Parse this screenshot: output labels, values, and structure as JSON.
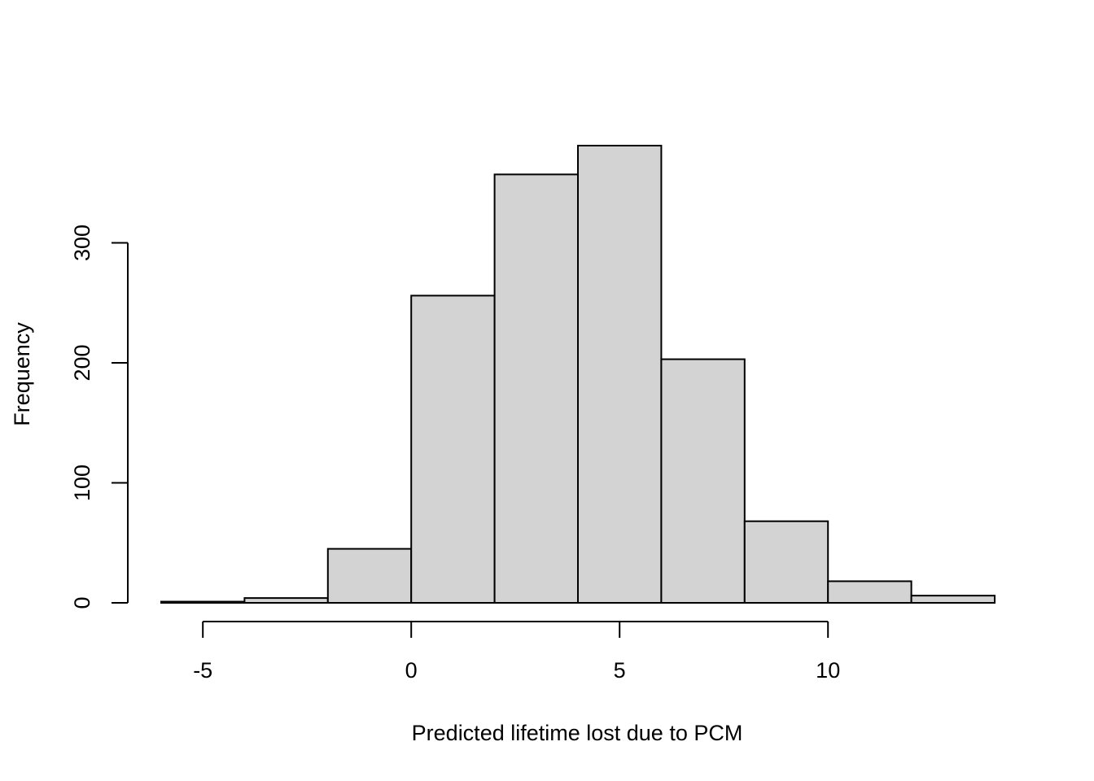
{
  "chart_data": {
    "type": "bar",
    "subtype": "histogram",
    "title": "",
    "xlabel": "Predicted lifetime lost due to PCM",
    "ylabel": "Frequency",
    "bins": [
      {
        "start": -6,
        "end": -4,
        "count": 1
      },
      {
        "start": -4,
        "end": -2,
        "count": 4
      },
      {
        "start": -2,
        "end": 0,
        "count": 45
      },
      {
        "start": 0,
        "end": 2,
        "count": 256
      },
      {
        "start": 2,
        "end": 4,
        "count": 357
      },
      {
        "start": 4,
        "end": 6,
        "count": 381
      },
      {
        "start": 6,
        "end": 8,
        "count": 203
      },
      {
        "start": 8,
        "end": 10,
        "count": 68
      },
      {
        "start": 10,
        "end": 12,
        "count": 18
      },
      {
        "start": 12,
        "end": 14,
        "count": 6
      }
    ],
    "xlim": [
      -6,
      14
    ],
    "ylim": [
      0,
      381
    ],
    "x_ticks": [
      -5,
      0,
      5,
      10
    ],
    "x_tick_labels": [
      "-5",
      "0",
      "5",
      "10"
    ],
    "y_ticks": [
      0,
      100,
      200,
      300
    ],
    "y_tick_labels": [
      "0",
      "100",
      "200",
      "300"
    ],
    "bar_color": "#d3d3d3",
    "edge_color": "#000000",
    "grid": false,
    "legend": "none"
  }
}
